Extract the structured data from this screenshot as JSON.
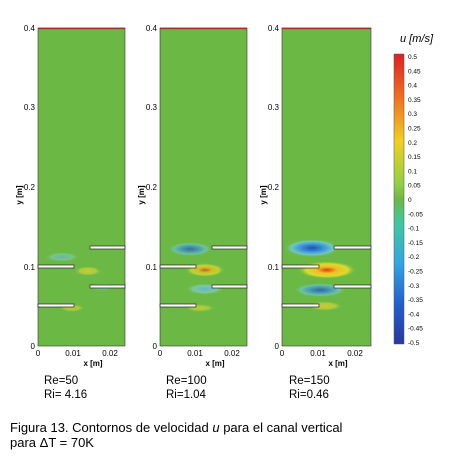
{
  "panels": [
    {
      "ticks_y": [
        "0",
        "0.1",
        "0.2",
        "0.3",
        "0.4"
      ],
      "ticks_x": [
        "0",
        "0.01",
        "0.02"
      ],
      "ylabel": "y [m]",
      "xlabel": "x [m]",
      "re_label": "Re=50",
      "ri_label": "Ri= 4.16"
    },
    {
      "ticks_y": [
        "0",
        "0.1",
        "0.2",
        "0.3",
        "0.4"
      ],
      "ticks_x": [
        "0",
        "0.01",
        "0.02"
      ],
      "ylabel": "y [m]",
      "xlabel": "x [m]",
      "re_label": "Re=100",
      "ri_label": "Ri=1.04"
    },
    {
      "ticks_y": [
        "0",
        "0.1",
        "0.2",
        "0.3",
        "0.4"
      ],
      "ticks_x": [
        "0",
        "0.01",
        "0.02"
      ],
      "ylabel": "y [m]",
      "xlabel": "x [m]",
      "re_label": "Re=150",
      "ri_label": "Ri=0.46"
    }
  ],
  "colorbar": {
    "title": "u [m/s]",
    "labels": [
      "0.5",
      "0.45",
      "0.4",
      "0.35",
      "0.3",
      "0.25",
      "0.2",
      "0.15",
      "0.1",
      "0.05",
      "0",
      "-0.05",
      "-0.1",
      "-0.15",
      "-0.2",
      "-0.25",
      "-0.3",
      "-0.35",
      "-0.4",
      "-0.45",
      "-0.5"
    ]
  },
  "caption": {
    "prefix": "Figura 13.  Contornos de velocidad ",
    "var": "u",
    "suffix": " para el canal vertical",
    "line2": "para ΔT = 70K"
  },
  "colors": {
    "field": "#6cb845",
    "top_wall": "#d83030",
    "positive_peak": "#e8d020",
    "negative_peak": "#2468c8"
  }
}
